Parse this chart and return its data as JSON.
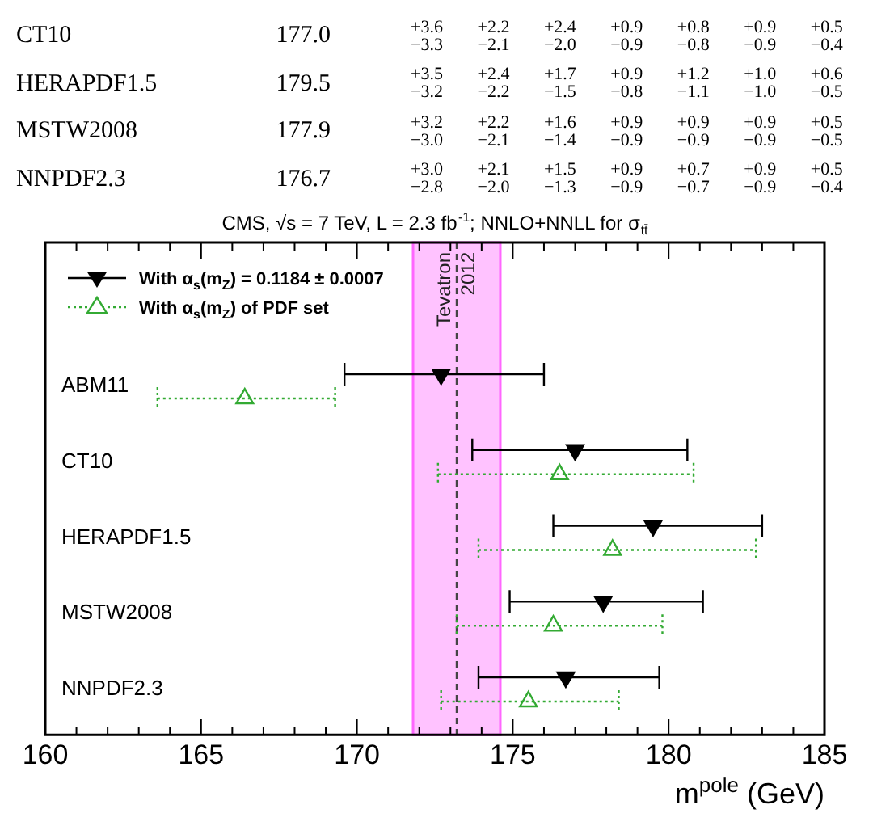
{
  "chart_data": {
    "type": "scatter",
    "orientation": "horizontal",
    "title": "CMS, √s = 7 TeV, L = 2.3 fb$^{-1}$; NNLO+NNLL for σ$_{tt̄}$",
    "xlabel": "m$^{pole}$ (GeV)",
    "categories": [
      "ABM11",
      "CT10",
      "HERAPDF1.5",
      "MSTW2008",
      "NNPDF2.3"
    ],
    "series": [
      {
        "name": "With α$_{s}$(m$_{Z}$) = 0.1184 ± 0.0007",
        "color": "#000000",
        "marker": "triangle",
        "line_style": "solid",
        "values": [
          172.7,
          177.0,
          179.5,
          177.9,
          176.7
        ],
        "errors": [
          [
            169.6,
            176.0
          ],
          [
            173.7,
            180.6
          ],
          [
            176.3,
            183.0
          ],
          [
            174.9,
            181.1
          ],
          [
            173.9,
            179.7
          ]
        ]
      },
      {
        "name": "With α$_{s}$(m$_{Z}$) of PDF set",
        "color": "#33aa33",
        "marker": "triangle",
        "line_style": "dotted",
        "values": [
          166.4,
          176.5,
          178.2,
          176.3,
          175.5
        ],
        "errors": [
          [
            163.6,
            169.3
          ],
          [
            172.6,
            180.8
          ],
          [
            173.9,
            182.8
          ],
          [
            173.2,
            179.8
          ],
          [
            172.7,
            178.4
          ]
        ]
      }
    ],
    "xlim": [
      160,
      185
    ],
    "xticks": [
      160,
      {
        "value": 161,
        "label": null
      },
      {
        "value": 162,
        "label": null
      },
      {
        "value": 163,
        "label": null
      },
      {
        "value": 164,
        "label": null
      },
      165,
      {
        "value": 166,
        "label": null
      },
      {
        "value": 167,
        "label": null
      },
      {
        "value": 168,
        "label": null
      },
      {
        "value": 169,
        "label": null
      },
      170,
      {
        "value": 171,
        "label": null
      },
      {
        "value": 172,
        "label": null
      },
      {
        "value": 173,
        "label": null
      },
      {
        "value": 174,
        "label": null
      },
      175,
      {
        "value": 176,
        "label": null
      },
      {
        "value": 177,
        "label": null
      },
      {
        "value": 178,
        "label": null
      },
      {
        "value": 179,
        "label": null
      },
      180,
      {
        "value": 181,
        "label": null
      },
      {
        "value": 182,
        "label": null
      },
      {
        "value": 183,
        "label": null
      },
      {
        "value": 184,
        "label": null
      },
      185
    ],
    "ref_lines": [
      {
        "axis": "x",
        "value": 173.2,
        "color": "#444444",
        "line_style": "dashed"
      }
    ],
    "bands": [
      {
        "axis": "x",
        "from": 171.8,
        "to": 174.6,
        "label": "Tevatron 2012",
        "color": "#ff66ff"
      }
    ],
    "legend": "top left",
    "grid": false,
    "annotations": [
      "CT10 177.0 +3.6 −3.3 +2.2 −2.1 +2.4 −2.0 +0.9 −0.9 +0.8 −0.8 +0.9 −0.9 +0.5 −0.4",
      "HERAPDF1.5 179.5 +3.5 −3.2 +2.4 −2.2 +1.7 −1.5 +0.9 −0.8 +1.2 −1.1 +1.0 −1.0 +0.6 −0.5",
      "MSTW2008 177.9 +3.2 −3.0 +2.2 −2.1 +1.6 −1.4 +0.9 −0.9 +0.9 −0.9 +0.9 −0.9 +0.5 −0.5",
      "NNPDF2.3 176.7 +3.0 −2.8 +2.1 −2.0 +1.5 −1.3 +0.9 −0.9 +0.7 −0.7 +0.9 −0.9 +0.5 −0.4"
    ]
  }
}
